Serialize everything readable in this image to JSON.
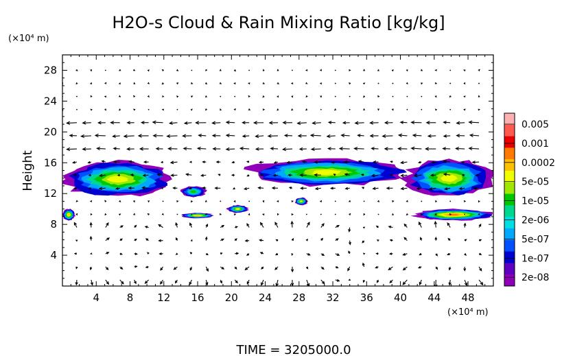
{
  "chart_data": {
    "type": "heatmap",
    "title": "H2O-s Cloud & Rain Mixing Ratio [kg/kg]",
    "ylabel": "Height",
    "y_unit_label": "(×10⁴ m)",
    "x_unit_label": "(×10⁴ m)",
    "footer": "TIME = 3205000.0",
    "xlim": [
      0,
      51
    ],
    "ylim": [
      0,
      30
    ],
    "x_ticks": [
      4,
      8,
      12,
      16,
      20,
      24,
      28,
      32,
      36,
      40,
      44,
      48
    ],
    "y_ticks": [
      4,
      8,
      12,
      16,
      20,
      24,
      28
    ],
    "colorbar": {
      "labels": [
        "0.005",
        "0.001",
        "0.0002",
        "5e-05",
        "1e-05",
        "2e-06",
        "5e-07",
        "1e-07",
        "2e-08"
      ],
      "colors": [
        "#ffb0b0",
        "#ff5a50",
        "#e80000",
        "#ff7a00",
        "#ffc000",
        "#f0ff00",
        "#a0e800",
        "#00c800",
        "#00d890",
        "#00e0e0",
        "#00a8ff",
        "#0050ff",
        "#0000d0",
        "#6000c0",
        "#9000b8"
      ]
    },
    "cloud_regions": [
      {
        "name": "upper-left cloud",
        "x": [
          0,
          13.2
        ],
        "y": [
          11.5,
          16.2
        ],
        "level": "5e-05"
      },
      {
        "name": "upper-middle cloud",
        "x": [
          21.5,
          41
        ],
        "y": [
          13,
          16.5
        ],
        "level": "5e-05"
      },
      {
        "name": "upper-right cloud",
        "x": [
          40.5,
          51
        ],
        "y": [
          11.5,
          16.5
        ],
        "level": "5e-05"
      },
      {
        "name": "small cloud near x=15",
        "x": [
          14,
          17
        ],
        "y": [
          11.5,
          13
        ],
        "level": "2e-06"
      },
      {
        "name": "low cloud near x=16",
        "x": [
          14,
          18
        ],
        "y": [
          8.8,
          9.5
        ],
        "level": "0.0002"
      },
      {
        "name": "low cloud near x=20",
        "x": [
          19.5,
          22
        ],
        "y": [
          9.5,
          10.5
        ],
        "level": "5e-05"
      },
      {
        "name": "low cloud near x=28",
        "x": [
          27.5,
          29
        ],
        "y": [
          10.5,
          11.5
        ],
        "level": "5e-05"
      },
      {
        "name": "low cloud left edge",
        "x": [
          0,
          1.5
        ],
        "y": [
          8.5,
          10
        ],
        "level": "0.0002"
      },
      {
        "name": "low cloud band right",
        "x": [
          41.5,
          51
        ],
        "y": [
          8.5,
          10
        ],
        "level": "0.001"
      }
    ]
  }
}
